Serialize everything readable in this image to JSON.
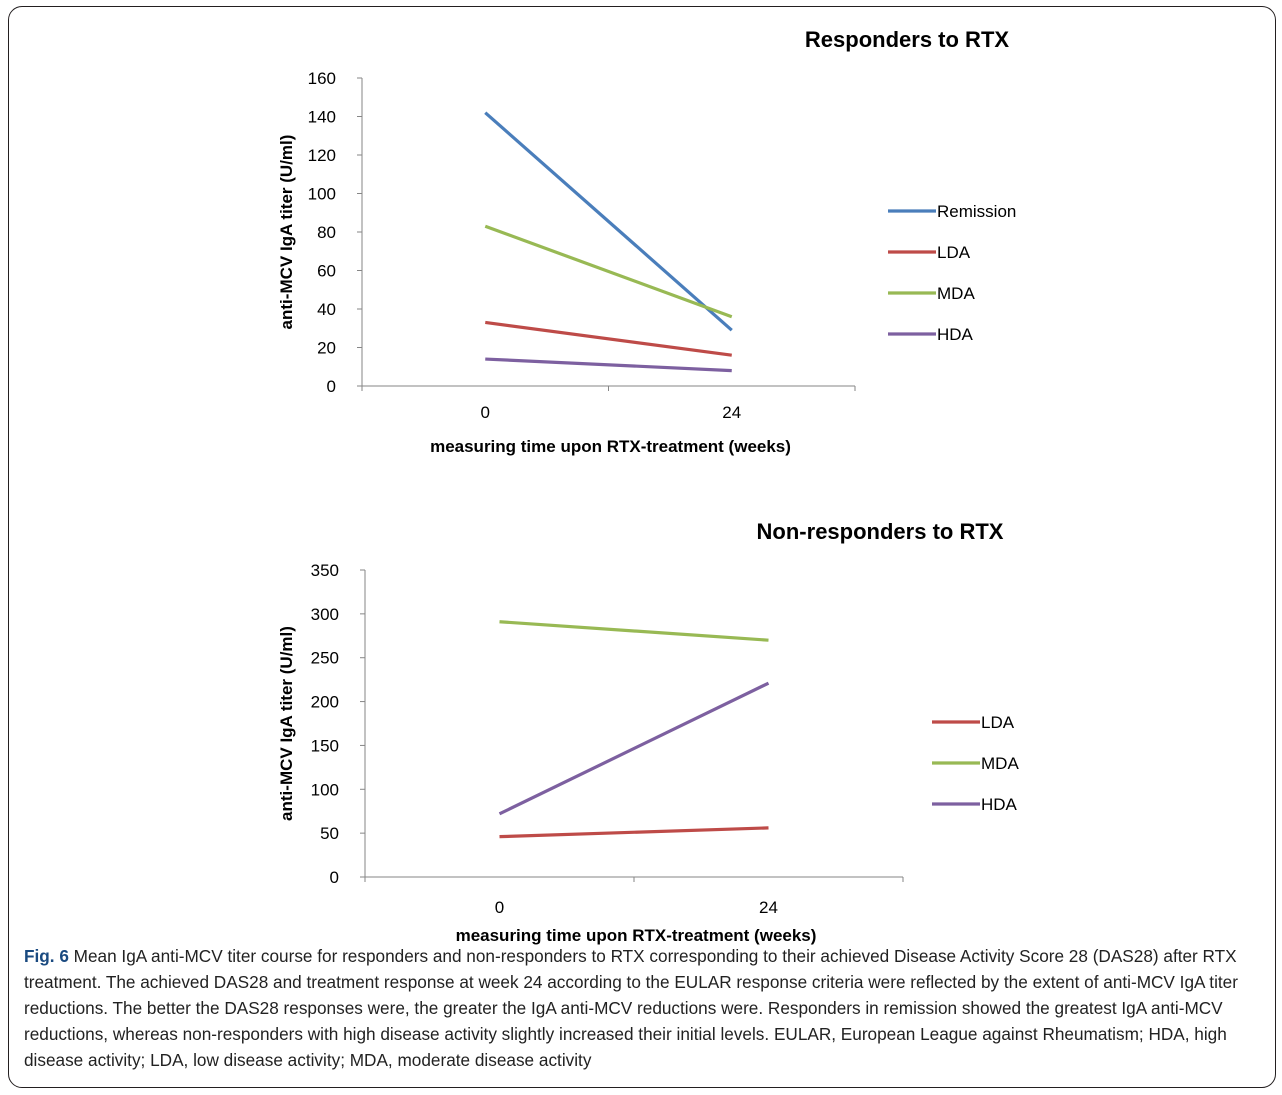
{
  "caption": {
    "label": "Fig. 6",
    "text": " Mean IgA anti-MCV titer course for responders and non-responders to RTX corresponding to their achieved Disease Activity Score 28 (DAS28) after RTX treatment. The achieved DAS28 and treatment response at week 24 according to the EULAR response criteria were reflected by the extent of anti-MCV IgA titer reductions. The better the DAS28 responses were, the greater the IgA anti-MCV reductions were. Responders in remission showed the greatest IgA anti-MCV reductions, whereas non-responders with high disease activity slightly increased their initial levels. EULAR, European League against Rheumatism; HDA, high disease activity; LDA, low disease activity; MDA, moderate disease activity"
  },
  "chart_data": [
    {
      "type": "line",
      "title": "Responders to RTX",
      "xlabel": "measuring time upon RTX-treatment (weeks)",
      "ylabel": "anti-MCV IgA titer (U/ml)",
      "categories": [
        "0",
        "24"
      ],
      "ylim": [
        0,
        160
      ],
      "yticks": [
        "0",
        "20",
        "40",
        "60",
        "80",
        "100",
        "120",
        "140",
        "160"
      ],
      "legend_position": "right",
      "series": [
        {
          "name": "Remission",
          "color": "#4a7ebb",
          "values": [
            142,
            29
          ]
        },
        {
          "name": "LDA",
          "color": "#be4b48",
          "values": [
            33,
            16
          ]
        },
        {
          "name": "MDA",
          "color": "#98b954",
          "values": [
            83,
            36
          ]
        },
        {
          "name": "HDA",
          "color": "#7d60a0",
          "values": [
            14,
            8
          ]
        }
      ]
    },
    {
      "type": "line",
      "title": "Non-responders to RTX",
      "xlabel": "measuring time upon RTX-treatment (weeks)",
      "ylabel": "anti-MCV IgA titer (U/ml)",
      "categories": [
        "0",
        "24"
      ],
      "ylim": [
        0,
        350
      ],
      "yticks": [
        "0",
        "50",
        "100",
        "150",
        "200",
        "250",
        "300",
        "350"
      ],
      "legend_position": "right",
      "series": [
        {
          "name": "LDA",
          "color": "#be4b48",
          "values": [
            46,
            56
          ]
        },
        {
          "name": "MDA",
          "color": "#98b954",
          "values": [
            291,
            270
          ]
        },
        {
          "name": "HDA",
          "color": "#7d60a0",
          "values": [
            72,
            221
          ]
        }
      ]
    }
  ]
}
